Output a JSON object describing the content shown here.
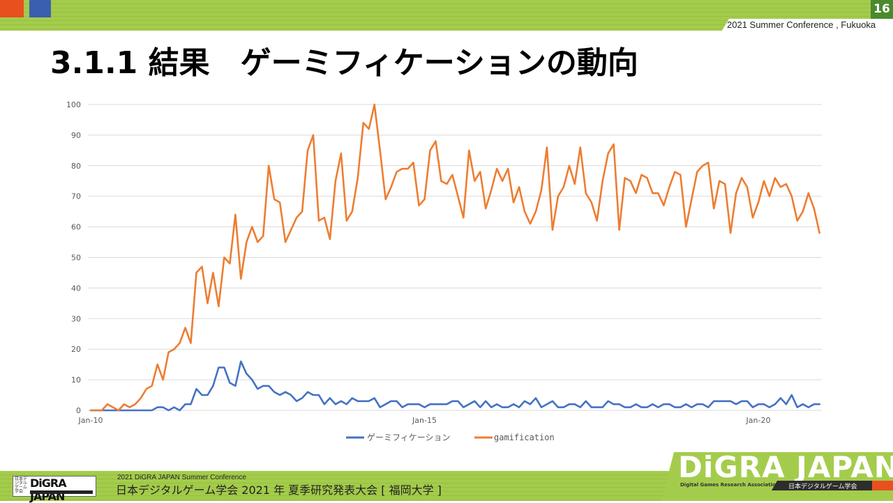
{
  "header": {
    "page_number": "16",
    "conference": "2021 Summer Conference , Fukuoka",
    "title": "3.1.1 結果　ゲーミフィケーションの動向"
  },
  "footer": {
    "small_logo_text": "DiGRA JAPAN",
    "small_logo_kanji": "日本デジタルゲーム学会",
    "conference_en": "2021 DiGRA JAPAN Summer Conference",
    "conference_jp": "日本デジタルゲーム学会 2021 年 夏季研究発表大会 [ 福岡大学 ]",
    "big_logo_text": "DiGRA JAPAN",
    "big_logo_sub": "Digital Games Research Association JAPAN",
    "big_logo_jp": "日本デジタルゲーム学会"
  },
  "colors": {
    "accent_green": "#a4cc4c",
    "dark_green": "#4a8a2e",
    "accent_orange": "#e8501e",
    "accent_blue": "#3a5fb0"
  },
  "chart_data": {
    "type": "line",
    "title": "",
    "xlabel": "",
    "ylabel": "",
    "ylim": [
      0,
      100
    ],
    "yticks": [
      0,
      10,
      20,
      30,
      40,
      50,
      60,
      70,
      80,
      90,
      100
    ],
    "xtick_labels": [
      {
        "index": 0,
        "label": "Jan-10"
      },
      {
        "index": 60,
        "label": "Jan-15"
      },
      {
        "index": 120,
        "label": "Jan-20"
      }
    ],
    "x_start": "Jan-2010",
    "x_step": "month",
    "grid": true,
    "legend_position": "bottom",
    "series": [
      {
        "name": "ゲーミフィケーション",
        "color": "#4472c4",
        "values": [
          0,
          0,
          0,
          0,
          0,
          0,
          0,
          0,
          0,
          0,
          0,
          0,
          1,
          1,
          0,
          1,
          0,
          2,
          2,
          7,
          5,
          5,
          8,
          14,
          14,
          9,
          8,
          16,
          12,
          10,
          7,
          8,
          8,
          6,
          5,
          6,
          5,
          3,
          4,
          6,
          5,
          5,
          2,
          4,
          2,
          3,
          2,
          4,
          3,
          3,
          3,
          4,
          1,
          2,
          3,
          3,
          1,
          2,
          2,
          2,
          1,
          2,
          2,
          2,
          2,
          3,
          3,
          1,
          2,
          3,
          1,
          3,
          1,
          2,
          1,
          1,
          2,
          1,
          3,
          2,
          4,
          1,
          2,
          3,
          1,
          1,
          2,
          2,
          1,
          3,
          1,
          1,
          1,
          3,
          2,
          2,
          1,
          1,
          2,
          1,
          1,
          2,
          1,
          2,
          2,
          1,
          1,
          2,
          1,
          2,
          2,
          1,
          3,
          3,
          3,
          3,
          2,
          3,
          3,
          1,
          2,
          2,
          1,
          2,
          4,
          2,
          5,
          1,
          2,
          1,
          2,
          2
        ]
      },
      {
        "name": "gamification",
        "color": "#ed7d31",
        "values": [
          0,
          0,
          0,
          2,
          1,
          0,
          2,
          1,
          2,
          4,
          7,
          8,
          15,
          10,
          19,
          20,
          22,
          27,
          22,
          45,
          47,
          35,
          45,
          34,
          50,
          48,
          64,
          43,
          55,
          60,
          55,
          57,
          80,
          69,
          68,
          55,
          59,
          63,
          65,
          85,
          90,
          62,
          63,
          56,
          75,
          84,
          62,
          65,
          76,
          94,
          92,
          100,
          85,
          69,
          73,
          78,
          79,
          79,
          81,
          67,
          69,
          85,
          88,
          75,
          74,
          77,
          70,
          63,
          85,
          75,
          78,
          66,
          72,
          79,
          75,
          79,
          68,
          73,
          65,
          61,
          65,
          72,
          86,
          59,
          70,
          73,
          80,
          74,
          86,
          71,
          68,
          62,
          75,
          84,
          87,
          59,
          76,
          75,
          71,
          77,
          76,
          71,
          71,
          67,
          73,
          78,
          77,
          60,
          69,
          78,
          80,
          81,
          66,
          75,
          74,
          58,
          71,
          76,
          73,
          63,
          68,
          75,
          70,
          76,
          73,
          74,
          70,
          62,
          65,
          71,
          66,
          58
        ]
      }
    ]
  }
}
